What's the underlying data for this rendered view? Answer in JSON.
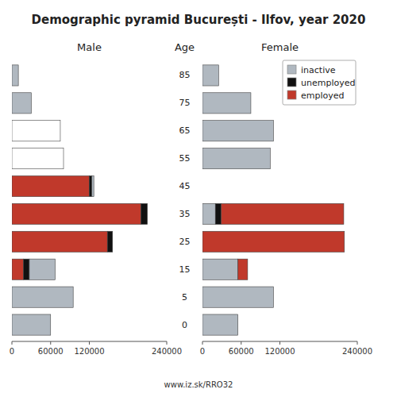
{
  "title": "Demographic pyramid București - Ilfov, year 2020",
  "source": "www.iz.sk/RRO32",
  "chart_data": [
    {
      "type": "bar",
      "orientation": "horizontal",
      "stacked": true,
      "title": "Male",
      "ylabel": "Age",
      "categories": [
        0,
        5,
        15,
        25,
        35,
        45,
        55,
        65,
        75,
        85
      ],
      "xlim": [
        0,
        240000
      ],
      "xticks": [
        0,
        60000,
        120000,
        240000
      ],
      "series": [
        {
          "color": "#c0392b",
          "values": [
            0,
            0,
            18000,
            148000,
            200000,
            120000,
            0,
            0,
            0,
            0
          ]
        },
        {
          "color": "#111111",
          "values": [
            0,
            0,
            9000,
            8000,
            10000,
            4000,
            0,
            0,
            0,
            0
          ]
        },
        {
          "colors": [
            "#b0b8c0",
            "#b0b8c0",
            "#b0b8c0",
            "#b0b8c0",
            "#b0b8c0",
            "#b0b8c0",
            "#ffffff",
            "#ffffff",
            "#b0b8c0",
            "#b0b8c0"
          ],
          "values": [
            60000,
            95000,
            40000,
            0,
            0,
            3000,
            80000,
            75000,
            30000,
            10000
          ]
        }
      ]
    },
    {
      "type": "bar",
      "orientation": "horizontal",
      "stacked": true,
      "title": "Female",
      "legend": "upper right",
      "categories": [
        0,
        5,
        15,
        25,
        35,
        45,
        55,
        65,
        75,
        85
      ],
      "xlim": [
        0,
        240000
      ],
      "xticks": [
        0,
        60000,
        120000,
        240000
      ],
      "series": [
        {
          "name": "inactive",
          "color": "#b0b8c0",
          "values": [
            55000,
            110000,
            55000,
            0,
            20000,
            0,
            105000,
            110000,
            75000,
            25000
          ]
        },
        {
          "name": "unemployed",
          "color": "#111111",
          "values": [
            0,
            0,
            0,
            0,
            9000,
            0,
            0,
            0,
            0,
            0
          ]
        },
        {
          "name": "employed",
          "color": "#c0392b",
          "values": [
            0,
            0,
            15000,
            220000,
            190000,
            0,
            0,
            0,
            0,
            0
          ]
        }
      ]
    }
  ]
}
